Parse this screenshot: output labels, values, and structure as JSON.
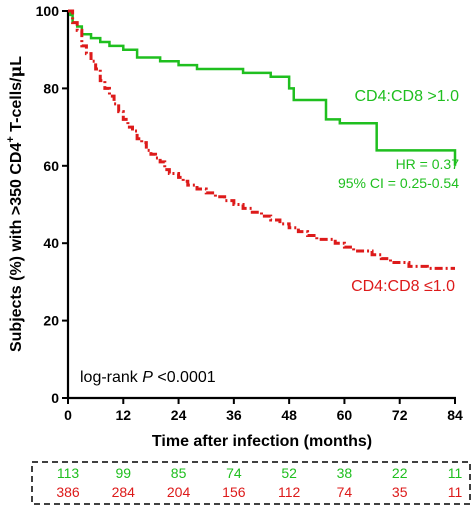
{
  "chart_data": {
    "type": "line",
    "subtype": "kaplan-meier step curve",
    "xlabel": "Time after infection (months)",
    "ylabel": "Subjects (%) with >350 CD4",
    "ylabel_superscript": "+",
    "ylabel_suffix": " T-cells/",
    "ylabel_unit_mu": "μ",
    "ylabel_unit_l": "L",
    "xlim": [
      0,
      84
    ],
    "ylim": [
      0,
      100
    ],
    "xticks": [
      0,
      12,
      24,
      36,
      48,
      60,
      72,
      84
    ],
    "yticks": [
      0,
      20,
      40,
      60,
      80,
      100
    ],
    "grid": false,
    "series": [
      {
        "name": "CD4:CD8 >1.0",
        "color": "#1fbf1f",
        "line_style": "solid",
        "steps": [
          [
            0,
            100
          ],
          [
            0.5,
            99
          ],
          [
            1,
            97
          ],
          [
            2,
            96
          ],
          [
            3,
            94
          ],
          [
            5,
            93
          ],
          [
            7,
            92
          ],
          [
            9,
            91
          ],
          [
            12,
            90
          ],
          [
            15,
            88
          ],
          [
            20,
            87
          ],
          [
            24,
            86
          ],
          [
            28,
            85
          ],
          [
            33,
            85
          ],
          [
            38,
            84
          ],
          [
            44,
            83
          ],
          [
            48,
            80
          ],
          [
            49,
            77
          ],
          [
            55,
            77
          ],
          [
            56,
            72
          ],
          [
            59,
            71
          ],
          [
            66,
            71
          ],
          [
            67,
            64
          ],
          [
            83,
            64
          ],
          [
            84,
            60
          ]
        ]
      },
      {
        "name": "CD4:CD8 ≤1.0",
        "color": "#dd1a1a",
        "line_style": "dash-dot",
        "steps": [
          [
            0,
            100
          ],
          [
            1,
            97
          ],
          [
            2,
            95
          ],
          [
            3,
            91
          ],
          [
            4,
            89
          ],
          [
            5,
            87
          ],
          [
            6,
            85
          ],
          [
            7,
            82
          ],
          [
            8,
            80
          ],
          [
            9,
            78
          ],
          [
            10,
            76
          ],
          [
            11,
            74
          ],
          [
            12,
            72
          ],
          [
            13,
            70
          ],
          [
            14,
            69
          ],
          [
            15,
            67
          ],
          [
            16,
            66
          ],
          [
            17,
            64
          ],
          [
            18,
            63
          ],
          [
            19,
            62
          ],
          [
            20,
            61
          ],
          [
            21,
            59
          ],
          [
            22,
            58
          ],
          [
            24,
            57
          ],
          [
            25,
            56
          ],
          [
            26,
            55
          ],
          [
            28,
            54
          ],
          [
            30,
            53
          ],
          [
            32,
            52
          ],
          [
            34,
            51
          ],
          [
            36,
            50
          ],
          [
            38,
            49
          ],
          [
            40,
            48
          ],
          [
            42,
            47
          ],
          [
            44,
            46
          ],
          [
            46,
            45
          ],
          [
            48,
            44
          ],
          [
            50,
            43
          ],
          [
            52,
            42
          ],
          [
            54,
            41
          ],
          [
            56,
            41
          ],
          [
            58,
            40
          ],
          [
            60,
            39
          ],
          [
            62,
            38
          ],
          [
            64,
            38
          ],
          [
            66,
            37
          ],
          [
            68,
            36
          ],
          [
            70,
            35
          ],
          [
            72,
            35
          ],
          [
            74,
            34
          ],
          [
            76,
            34
          ],
          [
            78,
            33.5
          ],
          [
            80,
            33.5
          ],
          [
            84,
            33.5
          ]
        ]
      }
    ],
    "annotations": {
      "green_label": "CD4:CD8 >1.0",
      "hr": "HR = 0.37",
      "ci": "95% CI = 0.25-0.54",
      "red_label": "CD4:CD8 ≤1.0",
      "logrank_prefix": "log-rank ",
      "logrank_p": "P",
      "logrank_value": " <0.0001"
    },
    "at_risk": {
      "x": [
        0,
        12,
        24,
        36,
        48,
        60,
        72,
        84
      ],
      "green": [
        "113",
        "99",
        "85",
        "74",
        "52",
        "38",
        "22",
        "11"
      ],
      "red": [
        "386",
        "284",
        "204",
        "156",
        "112",
        "74",
        "35",
        "11"
      ]
    }
  }
}
